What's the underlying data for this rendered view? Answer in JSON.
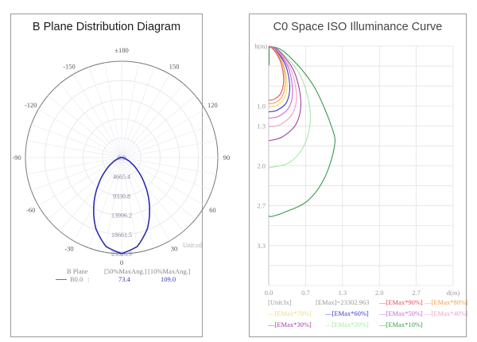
{
  "left": {
    "title": "B Plane Distribution Diagram",
    "unit_label": "Unit:cd",
    "legend": {
      "header_plane": "B Plane",
      "header_50": "[50%MaxAng.]",
      "header_10": "[10%MaxAng.]",
      "series_name": "B0.0",
      "separator": ":",
      "val_50": "73.4",
      "val_10": "109.0",
      "color": "#2b2bb0"
    }
  },
  "right": {
    "title": "C0 Space ISO Illuminance Curve",
    "y_axis_label": "h(m)",
    "x_axis_label": "d(m)",
    "unit_label": "[Unit:lx]",
    "emax_label": "[EMax]=23302.963"
  },
  "chart_data": [
    {
      "type": "polar-line",
      "title": "B Plane Distribution Diagram",
      "unit": "cd",
      "angle_ticks": [
        "0",
        "30",
        "60",
        "90",
        "120",
        "150",
        "±180",
        "-150",
        "-120",
        "-90",
        "-60",
        "-30"
      ],
      "radial_ticks": [
        "0.0",
        "4665.4",
        "9330.8",
        "13996.2",
        "18661.5",
        "23326.9"
      ],
      "radial_max": 23326.9,
      "grid": true,
      "series": [
        {
          "name": "B0.0",
          "color": "#2b2bb0",
          "angles_deg": [
            -90,
            -80,
            -70,
            -60,
            -50,
            -40,
            -30,
            -20,
            -10,
            0,
            10,
            20,
            30,
            40,
            50,
            60,
            70,
            80,
            90
          ],
          "values": [
            0,
            350,
            1100,
            2700,
            5200,
            8900,
            13500,
            18300,
            21900,
            23302,
            21900,
            18300,
            13500,
            8900,
            5200,
            2700,
            1100,
            350,
            0
          ]
        }
      ],
      "legend": {
        "columns": [
          "B Plane",
          "[50%MaxAng.]",
          "[10%MaxAng.]"
        ],
        "rows": [
          [
            "B0.0",
            73.4,
            109.0
          ]
        ]
      }
    },
    {
      "type": "line",
      "title": "C0 Space ISO Illuminance Curve",
      "xlabel": "d(m)",
      "ylabel": "h(m)",
      "x_ticks": [
        "0.0",
        "0.7",
        "1.3",
        "2.0",
        "2.7"
      ],
      "y_ticks": [
        "1.0",
        "1.3",
        "2.0",
        "2.7",
        "3.3"
      ],
      "xlim": [
        0,
        3.33
      ],
      "ylim": [
        0,
        4.33
      ],
      "grid": true,
      "unit": "lx",
      "emax": 23302.963,
      "legend_position": "bottom",
      "series": [
        {
          "name": "[EMax*90%]",
          "color": "#e0505a",
          "points": [
            [
              0,
              0
            ],
            [
              0.1,
              0.08
            ],
            [
              0.22,
              0.3
            ],
            [
              0.27,
              0.6
            ],
            [
              0.22,
              0.85
            ],
            [
              0.1,
              0.96
            ],
            [
              0,
              0.98
            ]
          ]
        },
        {
          "name": "[EMax*80%]",
          "color": "#f0a050",
          "points": [
            [
              0,
              0
            ],
            [
              0.11,
              0.08
            ],
            [
              0.25,
              0.32
            ],
            [
              0.3,
              0.64
            ],
            [
              0.25,
              0.9
            ],
            [
              0.12,
              1.02
            ],
            [
              0,
              1.04
            ]
          ]
        },
        {
          "name": "[EMax*70%]",
          "color": "#f2dc70",
          "points": [
            [
              0,
              0
            ],
            [
              0.12,
              0.08
            ],
            [
              0.27,
              0.34
            ],
            [
              0.33,
              0.68
            ],
            [
              0.28,
              0.95
            ],
            [
              0.13,
              1.08
            ],
            [
              0,
              1.1
            ]
          ]
        },
        {
          "name": "[EMax*60%]",
          "color": "#3a3ad0",
          "points": [
            [
              0,
              0
            ],
            [
              0.13,
              0.08
            ],
            [
              0.31,
              0.36
            ],
            [
              0.38,
              0.74
            ],
            [
              0.32,
              1.02
            ],
            [
              0.15,
              1.16
            ],
            [
              0,
              1.19
            ]
          ]
        },
        {
          "name": "[EMax*50%]",
          "color": "#d060e0",
          "points": [
            [
              0,
              0
            ],
            [
              0.14,
              0.08
            ],
            [
              0.35,
              0.38
            ],
            [
              0.43,
              0.8
            ],
            [
              0.37,
              1.1
            ],
            [
              0.18,
              1.27
            ],
            [
              0,
              1.3
            ]
          ]
        },
        {
          "name": "[EMax*40%]",
          "color": "#f0a0c8",
          "points": [
            [
              0,
              0
            ],
            [
              0.16,
              0.08
            ],
            [
              0.4,
              0.42
            ],
            [
              0.5,
              0.88
            ],
            [
              0.43,
              1.22
            ],
            [
              0.21,
              1.42
            ],
            [
              0,
              1.46
            ]
          ]
        },
        {
          "name": "[EMax*30%]",
          "color": "#a040a0",
          "points": [
            [
              0,
              0
            ],
            [
              0.18,
              0.08
            ],
            [
              0.46,
              0.46
            ],
            [
              0.58,
              1.0
            ],
            [
              0.5,
              1.4
            ],
            [
              0.25,
              1.64
            ],
            [
              0,
              1.71
            ]
          ]
        },
        {
          "name": "[EMax*20%]",
          "color": "#a8e8a8",
          "points": [
            [
              0,
              0
            ],
            [
              0.22,
              0.1
            ],
            [
              0.58,
              0.55
            ],
            [
              0.75,
              1.2
            ],
            [
              0.66,
              1.75
            ],
            [
              0.38,
              2.1
            ],
            [
              0,
              2.2
            ]
          ]
        },
        {
          "name": "[EMax*10%]",
          "color": "#3a9a4a",
          "points": [
            [
              0,
              0
            ],
            [
              0.3,
              0.12
            ],
            [
              0.8,
              0.7
            ],
            [
              1.15,
              1.5
            ],
            [
              1.18,
              1.85
            ],
            [
              1.0,
              2.4
            ],
            [
              0.7,
              2.8
            ],
            [
              0.3,
              3.0
            ],
            [
              0.06,
              3.08
            ],
            [
              0,
              3.07
            ]
          ]
        }
      ]
    }
  ]
}
